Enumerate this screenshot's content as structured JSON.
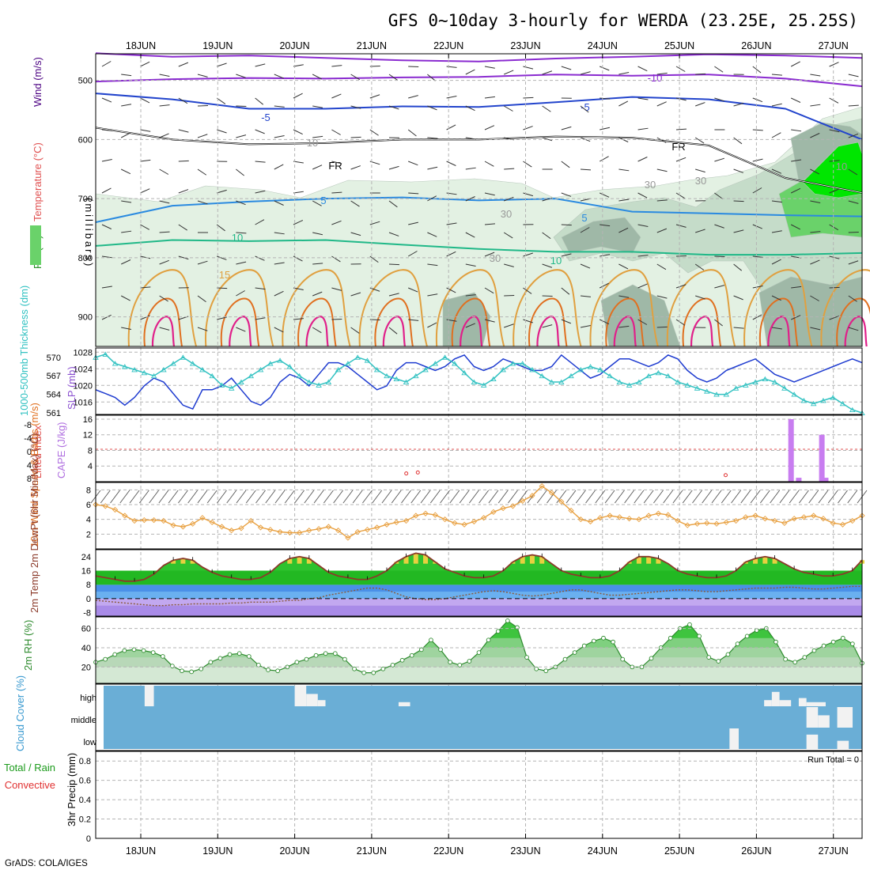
{
  "title": "GFS 0~10day 3-hourly for WERDA (23.25E, 25.25S)",
  "credit": "GrADS: COLA/IGES",
  "colors": {
    "rh_light": "#e3f1e3",
    "rh_mid": "#c5dcc9",
    "rh_dark": "#9fb8a7",
    "rh_green": "#6ad26a",
    "rh_bright": "#00e600",
    "cloud_blue": "#6aaed6",
    "cape": "#c87df0",
    "thick": "#33c2c2",
    "slp": "#1f3cd0",
    "wind_speed": "#e8a040",
    "temp_line": "#8b3a2a",
    "dewpt": "#8b5a3a",
    "rh2m_line": "#2e8b2e"
  },
  "chart_data": [
    {
      "panel": "upper-air",
      "type": "contour",
      "ylabel_parts": [
        "RH (%)",
        "Temperature (°C)",
        "Wind (m/s)"
      ],
      "ylabel_units": "(millibars)",
      "yticks": [
        "500",
        "600",
        "700",
        "800",
        "900"
      ],
      "xticks": [
        "18JUN",
        "19JUN",
        "20JUN",
        "21JUN",
        "22JUN",
        "23JUN",
        "24JUN",
        "25JUN",
        "26JUN",
        "27JUN"
      ],
      "ylim": [
        455,
        950
      ],
      "contour_labels": [
        "-10",
        "-5",
        "-5",
        "FR",
        "FR",
        "10",
        "10",
        "30",
        "30",
        "30",
        "30",
        "5",
        "5",
        "10",
        "10",
        "15"
      ],
      "isotherms": [
        {
          "name": "-10",
          "level": [
            454,
            460,
            458,
            462,
            466,
            468,
            463,
            460,
            456,
            458,
            462
          ]
        },
        {
          "name": "-10b",
          "level": [
            502,
            498,
            496,
            497,
            495,
            494,
            490,
            492,
            490,
            497,
            510
          ]
        },
        {
          "name": "-5",
          "level": [
            522,
            532,
            548,
            548,
            544,
            545,
            537,
            528,
            532,
            548,
            600
          ]
        },
        {
          "name": "FR",
          "level": [
            580,
            600,
            608,
            606,
            600,
            600,
            595,
            597,
            610,
            665,
            690
          ]
        },
        {
          "name": "5",
          "level": [
            740,
            712,
            705,
            700,
            698,
            703,
            700,
            722,
            725,
            728,
            730
          ]
        },
        {
          "name": "10",
          "level": [
            780,
            770,
            772,
            770,
            778,
            785,
            790,
            790,
            795,
            795,
            792
          ]
        }
      ]
    },
    {
      "panel": "pressure",
      "type": "line",
      "ylabel_left": "1000-500mb Thickness (dm)",
      "ylabel_right": "SLP (mb)",
      "yticks_left": [
        "570",
        "567",
        "564",
        "561"
      ],
      "yticks_right": [
        "1028",
        "1024",
        "1020",
        "1016"
      ],
      "ylim_right": [
        1013,
        1029
      ],
      "ylim_left": [
        561,
        571
      ],
      "series": [
        {
          "name": "SLP (mb)",
          "values": [
            1019,
            1018,
            1017,
            1015,
            1017,
            1020,
            1022,
            1021,
            1018,
            1015,
            1014,
            1019,
            1019,
            1020,
            1022,
            1019,
            1016,
            1015,
            1017,
            1021,
            1023,
            1022,
            1020,
            1023,
            1026,
            1026,
            1025,
            1023,
            1021,
            1019,
            1020,
            1024,
            1026,
            1026,
            1025,
            1024,
            1025,
            1027,
            1028,
            1025,
            1024,
            1025,
            1027,
            1026,
            1025,
            1024,
            1024,
            1025,
            1028,
            1026,
            1024,
            1022,
            1023,
            1025,
            1027,
            1027,
            1026,
            1025,
            1026,
            1028,
            1027,
            1024,
            1022,
            1021,
            1022,
            1024,
            1025,
            1026,
            1027,
            1025,
            1023,
            1022,
            1021,
            1022,
            1023,
            1024,
            1025,
            1026,
            1027,
            1026
          ]
        },
        {
          "name": "1000-500mb Thickness (dm)",
          "values": [
            570,
            570.5,
            569,
            568.5,
            568,
            567.5,
            567,
            568,
            569,
            570,
            569,
            568,
            567,
            565.5,
            565,
            566,
            567,
            568,
            569,
            569.5,
            568.5,
            567,
            566,
            565.5,
            566,
            568,
            569,
            570,
            569.5,
            568,
            567,
            566.5,
            566,
            567,
            568,
            569,
            570,
            569,
            567.5,
            566,
            565.5,
            566.5,
            568,
            569,
            569,
            568,
            567,
            566,
            566,
            567,
            568,
            568.5,
            568,
            567,
            566,
            565.5,
            566,
            567,
            567.5,
            567,
            566,
            565.5,
            565,
            564.5,
            564,
            564,
            565,
            565.5,
            566,
            566.5,
            566,
            565,
            564,
            563,
            562.5,
            563,
            563.5,
            562.5,
            561.5,
            561
          ]
        }
      ]
    },
    {
      "panel": "instability",
      "type": "bar",
      "ylabel_left": "Lifted Index",
      "ylabel_right": "CAPE (J/kg)",
      "yticks_right": [
        "16",
        "12",
        "8",
        "4"
      ],
      "yticks_left": [
        "-8",
        "-4",
        "0",
        "4",
        "8"
      ],
      "ylim_right": [
        0,
        17
      ],
      "cape_bars": [
        {
          "day": 8.45,
          "value": 16
        },
        {
          "day": 8.55,
          "value": 1
        },
        {
          "day": 8.85,
          "value": 12
        },
        {
          "day": 8.9,
          "value": 1
        }
      ],
      "lifted_index_marks": [
        {
          "day": 3.45,
          "value": 6.5
        },
        {
          "day": 3.6,
          "value": 6.2
        },
        {
          "day": 7.6,
          "value": 7
        }
      ]
    },
    {
      "panel": "wind10m",
      "type": "line",
      "ylabel": "10m Wind Speed & Barbs (m/s)",
      "yticks": [
        "8",
        "6",
        "4",
        "2"
      ],
      "ylim": [
        0,
        9
      ],
      "series": [
        {
          "name": "Wind speed (m/s)",
          "values": [
            6,
            5.8,
            5.3,
            4.5,
            3.8,
            3.9,
            3.9,
            3.8,
            3.2,
            3,
            3.4,
            4.2,
            3.6,
            3,
            2.5,
            2.8,
            3.8,
            2.9,
            2.6,
            2.3,
            2.2,
            2.2,
            2.5,
            2.7,
            3,
            2.5,
            1.5,
            2.3,
            2.6,
            2.9,
            3.3,
            3.6,
            3.8,
            4.5,
            4.8,
            4.6,
            4,
            3.5,
            3.3,
            3.7,
            4.2,
            5,
            5.5,
            5.8,
            6.5,
            7.2,
            8.5,
            7.6,
            6.4,
            5.2,
            4,
            3.7,
            4.2,
            4.5,
            4.3,
            4.1,
            4,
            4.5,
            4.8,
            4.6,
            3.8,
            3.2,
            3.4,
            3.5,
            3.4,
            3.6,
            3.8,
            4.3,
            4.5,
            4.1,
            3.8,
            3.5,
            4.1,
            4.3,
            4.5,
            4.1,
            3.5,
            3.3,
            3.8,
            4.5
          ]
        }
      ]
    },
    {
      "panel": "temperature",
      "type": "area",
      "ylabel": "2m Temp 2m DewPt (6hr Min/Max) (°C)",
      "yticks": [
        "24",
        "16",
        "8",
        "0",
        "-8"
      ],
      "ylim": [
        -10,
        28
      ],
      "series": [
        {
          "name": "2m Temp",
          "values": [
            13,
            12,
            11,
            10,
            10,
            11,
            14,
            19,
            22,
            23,
            22,
            18,
            15,
            13,
            12,
            11,
            11,
            12,
            15,
            20,
            23,
            24,
            23,
            19,
            15,
            13,
            12,
            11,
            11,
            13,
            16,
            21,
            24,
            26,
            25,
            21,
            17,
            15,
            13,
            12,
            12,
            13,
            16,
            21,
            24,
            25,
            24,
            20,
            16,
            14,
            13,
            12,
            12,
            13,
            16,
            21,
            24,
            24,
            23,
            20,
            16,
            14,
            13,
            12,
            12,
            13,
            16,
            21,
            23,
            24,
            23,
            20,
            17,
            15,
            14,
            13,
            13,
            14,
            16,
            22
          ]
        },
        {
          "name": "2m DewPt",
          "values": [
            -1,
            -1.5,
            -2,
            -2.5,
            -3,
            -3.5,
            -4,
            -4,
            -3.5,
            -3.5,
            -3,
            -3,
            -3,
            -3,
            -2.5,
            -2.5,
            -2,
            -2,
            -2,
            -1.5,
            -1,
            -1,
            0,
            0.5,
            2,
            3,
            4,
            5,
            6,
            6,
            5,
            3,
            1,
            0,
            -0.5,
            -0.5,
            0,
            1,
            2,
            3,
            4,
            4.5,
            4,
            3,
            2,
            1.5,
            2,
            3,
            4,
            5,
            5,
            4,
            3,
            2,
            2,
            2.5,
            3,
            3.5,
            4,
            4.5,
            5,
            5,
            4.5,
            4,
            4,
            4.5,
            5,
            5.5,
            6,
            6,
            6,
            6.5,
            6.5,
            6,
            5.5,
            5.5,
            6,
            6.5,
            7,
            7
          ]
        }
      ]
    },
    {
      "panel": "rh2m",
      "type": "area",
      "ylabel": "2m RH (%)",
      "yticks": [
        "60",
        "40",
        "20"
      ],
      "ylim": [
        3,
        72
      ],
      "series": [
        {
          "name": "2m RH",
          "values": [
            25,
            28,
            33,
            37,
            38,
            37,
            35,
            31,
            21,
            16,
            15,
            18,
            25,
            29,
            33,
            34,
            31,
            22,
            17,
            16,
            20,
            25,
            28,
            32,
            34,
            34,
            28,
            18,
            14,
            14,
            18,
            22,
            27,
            32,
            38,
            48,
            38,
            25,
            22,
            26,
            35,
            48,
            57,
            68,
            61,
            30,
            18,
            16,
            20,
            28,
            35,
            42,
            47,
            50,
            46,
            28,
            20,
            20,
            29,
            40,
            50,
            60,
            64,
            52,
            30,
            26,
            33,
            44,
            52,
            58,
            60,
            46,
            28,
            25,
            30,
            37,
            42,
            46,
            50,
            44,
            24
          ]
        }
      ]
    },
    {
      "panel": "cloud",
      "type": "heatmap",
      "ylabel": "Cloud Cover (%)",
      "yticks": [
        "high",
        "middle",
        "low"
      ],
      "cells": [
        {
          "layer": "high",
          "from": 0.05,
          "to": 0.17,
          "value": 100
        },
        {
          "layer": "high",
          "from": 2.0,
          "to": 2.15,
          "value": 100
        },
        {
          "layer": "high",
          "from": 2.15,
          "to": 2.3,
          "value": 60
        },
        {
          "layer": "high",
          "from": 2.3,
          "to": 2.4,
          "value": 30
        },
        {
          "layer": "high",
          "from": 3.35,
          "to": 3.5,
          "value": 20
        },
        {
          "layer": "high",
          "from": 8.1,
          "to": 8.2,
          "value": 30
        },
        {
          "layer": "high",
          "from": 8.2,
          "to": 8.3,
          "value": 70
        },
        {
          "layer": "high",
          "from": 8.3,
          "to": 8.45,
          "value": 30
        },
        {
          "layer": "high",
          "from": 8.55,
          "to": 8.65,
          "value": 40
        },
        {
          "layer": "high",
          "from": 8.65,
          "to": 8.9,
          "value": 20
        },
        {
          "layer": "middle",
          "from": 8.65,
          "to": 8.8,
          "value": 100
        },
        {
          "layer": "middle",
          "from": 8.8,
          "to": 8.95,
          "value": 60
        },
        {
          "layer": "middle",
          "from": 9.05,
          "to": 9.25,
          "value": 100
        },
        {
          "layer": "low",
          "from": 7.65,
          "to": 7.77,
          "value": 100
        },
        {
          "layer": "low",
          "from": 8.65,
          "to": 8.8,
          "value": 70
        },
        {
          "layer": "low",
          "from": 9.05,
          "to": 9.2,
          "value": 40
        }
      ]
    },
    {
      "panel": "precip",
      "type": "bar",
      "ylabel_left": "Total / Rain",
      "ylabel_convective": "Convective",
      "ylabel_right": "3hr Precip (mm)",
      "yticks": [
        "0.8",
        "0.6",
        "0.4",
        "0.2",
        "0"
      ],
      "ylim": [
        0,
        0.9
      ],
      "run_total": "Run Total = 0",
      "values": []
    }
  ]
}
